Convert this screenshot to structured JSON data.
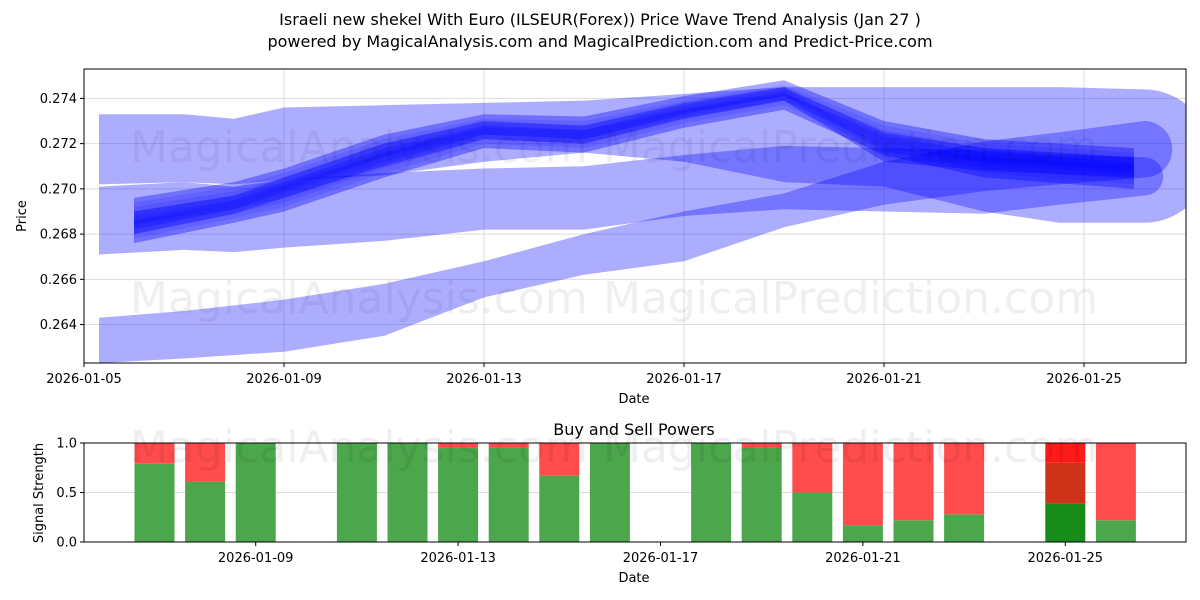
{
  "header": {
    "title": "Israeli new shekel With Euro (ILSEUR(Forex)) Price Wave Trend Analysis (Jan 27 )",
    "subtitle": "powered by MagicalAnalysis.com and MagicalPrediction.com and Predict-Price.com"
  },
  "watermarks": [
    "MagicalAnalysis.com",
    "MagicalPrediction.com"
  ],
  "colors": {
    "band": "#0000ff",
    "buy": "#4ca64c",
    "sell": "#ff4c4c",
    "buy_strong": "#188c18",
    "sell_mid": "#cc3319",
    "sell_strong": "#ff1a1a",
    "grid": "#dddddd"
  },
  "chart_data": [
    {
      "type": "area",
      "title": "Israeli new shekel With Euro (ILSEUR(Forex)) Price Wave Trend Analysis (Jan 27 )",
      "xlabel": "Date",
      "ylabel": "Price",
      "x_ticks": [
        "2026-01-05",
        "2026-01-09",
        "2026-01-13",
        "2026-01-17",
        "2026-01-21",
        "2026-01-25"
      ],
      "y_ticks": [
        "0.264",
        "0.266",
        "0.268",
        "0.270",
        "0.272",
        "0.274"
      ],
      "ylim": [
        0.2623,
        0.2753
      ],
      "xlim_days_from_jan5": [
        0,
        22.0
      ],
      "grid": true,
      "bands": [
        {
          "name": "upper-wide",
          "x": [
            0.3,
            2,
            3,
            4,
            6,
            8,
            10,
            12,
            14,
            16,
            18,
            19.5,
            21.2
          ],
          "upper": [
            0.2733,
            0.2733,
            0.2731,
            0.2736,
            0.2737,
            0.2738,
            0.2739,
            0.2742,
            0.2745,
            0.2745,
            0.2745,
            0.2745,
            0.2744
          ],
          "lower": [
            0.2702,
            0.2703,
            0.2702,
            0.2704,
            0.2706,
            0.2712,
            0.2716,
            0.2712,
            0.2703,
            0.2701,
            0.269,
            0.2685,
            0.2685
          ]
        },
        {
          "name": "middle-wide",
          "x": [
            0.3,
            2,
            3,
            4,
            6,
            8,
            10,
            12,
            14,
            16,
            18,
            19.5,
            21.2
          ],
          "upper": [
            0.2701,
            0.2703,
            0.2701,
            0.2704,
            0.2707,
            0.2709,
            0.271,
            0.2715,
            0.2719,
            0.2718,
            0.2717,
            0.2715,
            0.2714
          ],
          "lower": [
            0.2671,
            0.2673,
            0.2672,
            0.2674,
            0.2677,
            0.2682,
            0.2682,
            0.2688,
            0.2691,
            0.269,
            0.2689,
            0.2693,
            0.2697
          ]
        },
        {
          "name": "lower-wide",
          "x": [
            0.3,
            2,
            4,
            6,
            8,
            10,
            12,
            14,
            16,
            18,
            19.5,
            21.2
          ],
          "upper": [
            0.2643,
            0.2646,
            0.2651,
            0.2658,
            0.2668,
            0.268,
            0.269,
            0.2698,
            0.2712,
            0.2721,
            0.2725,
            0.273
          ],
          "lower": [
            0.2623,
            0.2625,
            0.2628,
            0.2635,
            0.2652,
            0.2662,
            0.2668,
            0.2683,
            0.2693,
            0.2699,
            0.2702,
            0.2705
          ]
        },
        {
          "name": "core-trend-1",
          "x": [
            1,
            3,
            4,
            6,
            8,
            10,
            12,
            14,
            16,
            18,
            21
          ],
          "upper": [
            0.2696,
            0.2703,
            0.2709,
            0.2724,
            0.2733,
            0.2732,
            0.2741,
            0.2748,
            0.273,
            0.2722,
            0.2718
          ],
          "lower": [
            0.2676,
            0.2685,
            0.269,
            0.2705,
            0.2718,
            0.2716,
            0.2727,
            0.2735,
            0.2715,
            0.2705,
            0.27
          ]
        },
        {
          "name": "core-trend-2",
          "x": [
            1,
            3,
            4,
            6,
            8,
            10,
            12,
            14,
            16,
            18,
            21
          ],
          "upper": [
            0.269,
            0.2697,
            0.2705,
            0.272,
            0.273,
            0.2728,
            0.2738,
            0.2745,
            0.2725,
            0.2718,
            0.2714
          ],
          "lower": [
            0.268,
            0.2689,
            0.2696,
            0.271,
            0.2722,
            0.272,
            0.2731,
            0.2739,
            0.2712,
            0.2708,
            0.2705
          ]
        }
      ]
    },
    {
      "type": "bar",
      "title": "Buy and Sell Powers",
      "xlabel": "Date",
      "ylabel": "Signal Strength",
      "x_ticks": [
        "2026-01-09",
        "2026-01-13",
        "2026-01-17",
        "2026-01-21",
        "2026-01-25"
      ],
      "y_ticks": [
        "0.0",
        "0.5",
        "1.0"
      ],
      "ylim": [
        0,
        1.0
      ],
      "categories": [
        "2026-01-07",
        "2026-01-08",
        "2026-01-09",
        "2026-01-11",
        "2026-01-12",
        "2026-01-13",
        "2026-01-14",
        "2026-01-15",
        "2026-01-16",
        "2026-01-18",
        "2026-01-19",
        "2026-01-20",
        "2026-01-21",
        "2026-01-22",
        "2026-01-23",
        "2026-01-25",
        "2026-01-26"
      ],
      "day_index": [
        2,
        3,
        4,
        6,
        7,
        8,
        9,
        10,
        11,
        13,
        14,
        15,
        16,
        17,
        18,
        20,
        21
      ],
      "series": [
        {
          "name": "Buy",
          "values": [
            0.79,
            0.61,
            1.0,
            1.0,
            1.0,
            0.95,
            0.95,
            0.67,
            1.0,
            1.0,
            0.95,
            0.5,
            0.17,
            0.22,
            0.28,
            0.39,
            0.22
          ]
        },
        {
          "name": "Sell",
          "values": [
            0.21,
            0.39,
            0.0,
            0.0,
            0.0,
            0.05,
            0.05,
            0.33,
            0.0,
            0.0,
            0.05,
            0.5,
            0.83,
            0.78,
            0.72,
            0.61,
            0.78
          ]
        }
      ],
      "special_bar": {
        "category": "2026-01-25",
        "segments": [
          {
            "name": "Buy strong",
            "from": 0.0,
            "to": 0.39
          },
          {
            "name": "Sell mid",
            "from": 0.39,
            "to": 0.8
          },
          {
            "name": "Sell strong",
            "from": 0.8,
            "to": 1.0
          }
        ]
      }
    }
  ]
}
